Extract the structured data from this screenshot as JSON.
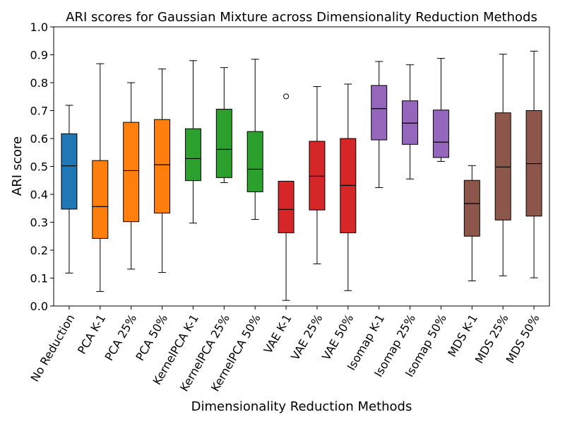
{
  "chart_data": {
    "type": "box",
    "title": "ARI scores for Gaussian Mixture across Dimensionality Reduction Methods",
    "xlabel": "Dimensionality Reduction Methods",
    "ylabel": "ARI score",
    "ylim": [
      0.0,
      1.0
    ],
    "yticks": [
      "0.0",
      "0.1",
      "0.2",
      "0.3",
      "0.4",
      "0.5",
      "0.6",
      "0.7",
      "0.8",
      "0.9",
      "1.0"
    ],
    "grid": false,
    "categories": [
      "No Reduction",
      "PCA K-1",
      "PCA 25%",
      "PCA 50%",
      "KernelPCA K-1",
      "KernelPCA 25%",
      "KernelPCA 50%",
      "VAE K-1",
      "VAE 25%",
      "VAE 50%",
      "Isomap K-1",
      "Isomap 25%",
      "Isomap 50%",
      "MDS K-1",
      "MDS 25%",
      "MDS 50%"
    ],
    "boxes": [
      {
        "whislo": 0.118,
        "q1": 0.347,
        "med": 0.502,
        "q3": 0.617,
        "whishi": 0.719,
        "fliers": [],
        "color": "#1f77b4"
      },
      {
        "whislo": 0.052,
        "q1": 0.242,
        "med": 0.356,
        "q3": 0.521,
        "whishi": 0.868,
        "fliers": [],
        "color": "#ff7f0e"
      },
      {
        "whislo": 0.132,
        "q1": 0.302,
        "med": 0.485,
        "q3": 0.658,
        "whishi": 0.8,
        "fliers": [],
        "color": "#ff7f0e"
      },
      {
        "whislo": 0.12,
        "q1": 0.333,
        "med": 0.506,
        "q3": 0.668,
        "whishi": 0.849,
        "fliers": [],
        "color": "#ff7f0e"
      },
      {
        "whislo": 0.297,
        "q1": 0.449,
        "med": 0.528,
        "q3": 0.635,
        "whishi": 0.879,
        "fliers": [],
        "color": "#2ca02c"
      },
      {
        "whislo": 0.442,
        "q1": 0.46,
        "med": 0.561,
        "q3": 0.705,
        "whishi": 0.854,
        "fliers": [],
        "color": "#2ca02c"
      },
      {
        "whislo": 0.31,
        "q1": 0.409,
        "med": 0.49,
        "q3": 0.625,
        "whishi": 0.884,
        "fliers": [],
        "color": "#2ca02c"
      },
      {
        "whislo": 0.02,
        "q1": 0.262,
        "med": 0.346,
        "q3": 0.447,
        "whishi": 0.447,
        "fliers": [
          0.751
        ],
        "color": "#d62728"
      },
      {
        "whislo": 0.151,
        "q1": 0.344,
        "med": 0.465,
        "q3": 0.59,
        "whishi": 0.786,
        "fliers": [],
        "color": "#d62728"
      },
      {
        "whislo": 0.055,
        "q1": 0.262,
        "med": 0.432,
        "q3": 0.6,
        "whishi": 0.795,
        "fliers": [],
        "color": "#d62728"
      },
      {
        "whislo": 0.424,
        "q1": 0.595,
        "med": 0.707,
        "q3": 0.79,
        "whishi": 0.876,
        "fliers": [],
        "color": "#9467bd"
      },
      {
        "whislo": 0.455,
        "q1": 0.579,
        "med": 0.655,
        "q3": 0.735,
        "whishi": 0.864,
        "fliers": [],
        "color": "#9467bd"
      },
      {
        "whislo": 0.518,
        "q1": 0.532,
        "med": 0.587,
        "q3": 0.702,
        "whishi": 0.887,
        "fliers": [],
        "color": "#9467bd"
      },
      {
        "whislo": 0.09,
        "q1": 0.25,
        "med": 0.367,
        "q3": 0.45,
        "whishi": 0.503,
        "fliers": [],
        "color": "#8c564b"
      },
      {
        "whislo": 0.108,
        "q1": 0.308,
        "med": 0.498,
        "q3": 0.692,
        "whishi": 0.902,
        "fliers": [],
        "color": "#8c564b"
      },
      {
        "whislo": 0.101,
        "q1": 0.322,
        "med": 0.51,
        "q3": 0.7,
        "whishi": 0.913,
        "fliers": [],
        "color": "#8c564b"
      }
    ]
  }
}
